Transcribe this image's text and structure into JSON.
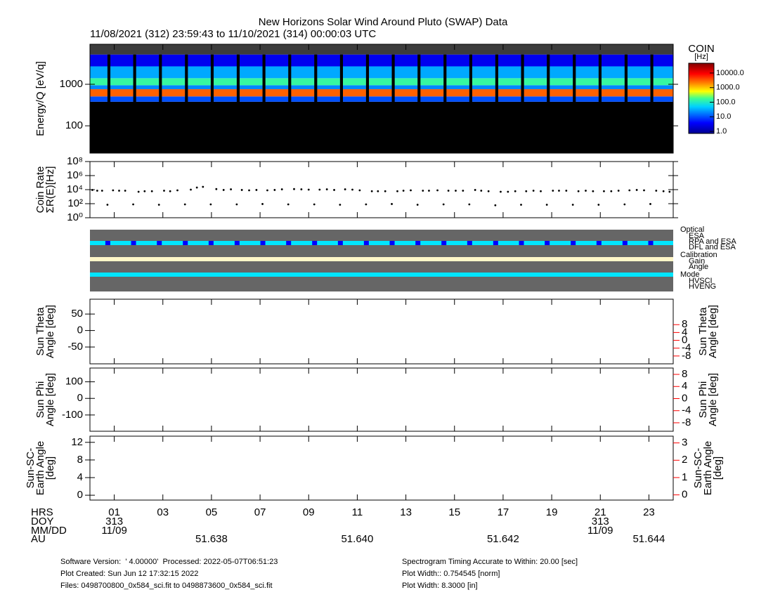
{
  "title": "New Horizons Solar Wind Around Pluto (SWAP) Data",
  "subtitle": "11/08/2021 (312) 23:59:43 to 11/10/2021 (314) 00:00:03 UTC",
  "time_axis": {
    "xlim": [
      0,
      24
    ],
    "xticks": [
      {
        "value": 1,
        "label": "01"
      },
      {
        "value": 3,
        "label": "03"
      },
      {
        "value": 5,
        "label": "05"
      },
      {
        "value": 7,
        "label": "07"
      },
      {
        "value": 9,
        "label": "09"
      },
      {
        "value": 11,
        "label": "11"
      },
      {
        "value": 13,
        "label": "13"
      },
      {
        "value": 15,
        "label": "15"
      },
      {
        "value": 17,
        "label": "17"
      },
      {
        "value": 19,
        "label": "19"
      },
      {
        "value": 21,
        "label": "21"
      },
      {
        "value": 23,
        "label": "23"
      }
    ],
    "rows": [
      "HRS",
      "DOY",
      "MM/DD",
      "AU"
    ],
    "doy": [
      {
        "value": 1,
        "label": "313"
      },
      {
        "value": 21,
        "label": "313"
      }
    ],
    "mmdd": [
      {
        "value": 1,
        "label": "11/09"
      },
      {
        "value": 21,
        "label": "11/09"
      }
    ],
    "au": [
      {
        "value": 5,
        "label": "51.638"
      },
      {
        "value": 11,
        "label": "51.640"
      },
      {
        "value": 17,
        "label": "51.642"
      },
      {
        "value": 23,
        "label": "51.644"
      }
    ]
  },
  "chart_data": [
    {
      "type": "heatmap",
      "ylabel": [
        "Energy/Q [eV/q]"
      ],
      "ylog": true,
      "ylim": [
        22,
        9200
      ],
      "yticks": [
        100,
        1000
      ],
      "energy_edges": [
        22,
        380,
        510,
        760,
        950,
        1400,
        2700,
        5200,
        9200
      ],
      "rates": [
        0.5,
        10,
        3000,
        20,
        150,
        30,
        3,
        null
      ],
      "gaps": [
        0.72,
        1.78,
        2.84,
        3.91,
        4.97,
        6.04,
        7.1,
        8.16,
        9.23,
        10.29,
        11.36,
        12.42,
        13.48,
        14.55,
        15.61,
        16.68,
        17.74,
        18.8,
        19.87,
        20.93,
        22.0,
        23.06
      ],
      "gap_width": 0.12,
      "colorbar_title": [
        "COIN",
        "[Hz]"
      ],
      "zlim": [
        0.72,
        47000
      ],
      "zticks": [
        {
          "value": 10000,
          "label": "10000.0"
        },
        {
          "value": 1000,
          "label": "1000.0"
        },
        {
          "value": 100,
          "label": "100.0"
        },
        {
          "value": 10,
          "label": "10.0"
        },
        {
          "value": 1,
          "label": "1.0"
        }
      ]
    },
    {
      "type": "scatter",
      "ylabel": [
        "Coin Rate",
        "ΣR(E)[Hz]"
      ],
      "ylog": true,
      "ylim": [
        1,
        100000000
      ],
      "yticks": [
        {
          "value": 1,
          "label": "10⁰"
        },
        {
          "value": 100,
          "label": "10²"
        },
        {
          "value": 10000,
          "label": "10⁴"
        },
        {
          "value": 1000000,
          "label": "10⁶"
        },
        {
          "value": 100000000,
          "label": "10⁸"
        }
      ],
      "series": [
        {
          "color": "#000000",
          "x": [
            0.1,
            0.3,
            0.5,
            0.95,
            1.2,
            1.45,
            2.0,
            2.25,
            2.55,
            3.05,
            3.3,
            3.6,
            4.15,
            4.4,
            4.65,
            5.2,
            5.5,
            5.8,
            6.25,
            6.55,
            6.85,
            7.3,
            7.6,
            7.9,
            8.4,
            8.7,
            9.0,
            9.45,
            9.75,
            10.05,
            10.5,
            10.8,
            11.1,
            11.6,
            11.85,
            12.15,
            12.65,
            12.9,
            13.2,
            13.7,
            13.95,
            14.3,
            14.75,
            15.05,
            15.35,
            15.85,
            16.1,
            16.4,
            16.9,
            17.2,
            17.5,
            17.95,
            18.25,
            18.55,
            19.05,
            19.3,
            19.6,
            20.1,
            20.4,
            20.7,
            21.15,
            21.45,
            21.75,
            22.2,
            22.5,
            22.8,
            23.3,
            23.6,
            23.85
          ],
          "values": [
            9000,
            7000,
            7000,
            8000,
            7000,
            7000,
            5000,
            6000,
            6000,
            7000,
            6000,
            8000,
            10000,
            20000,
            25000,
            12000,
            9000,
            11000,
            9000,
            8000,
            9000,
            8000,
            9000,
            11000,
            12000,
            11000,
            10000,
            10000,
            11000,
            9000,
            11000,
            10000,
            8000,
            6000,
            6000,
            6000,
            6000,
            7000,
            8000,
            7000,
            7000,
            8000,
            7000,
            7000,
            7000,
            9000,
            7000,
            6000,
            5000,
            5000,
            6000,
            6000,
            7000,
            6000,
            7000,
            7000,
            7000,
            6000,
            7000,
            6000,
            6000,
            6000,
            7000,
            8000,
            9000,
            8000,
            7000,
            6000,
            5000
          ]
        },
        {
          "color": "#000000",
          "x": [
            0.72,
            1.78,
            2.84,
            3.91,
            4.97,
            6.04,
            7.1,
            8.16,
            9.23,
            10.29,
            11.36,
            12.42,
            13.48,
            14.55,
            15.61,
            16.68,
            17.74,
            18.8,
            19.87,
            20.93,
            22.0,
            23.06
          ],
          "values": [
            70,
            80,
            70,
            80,
            80,
            80,
            90,
            80,
            80,
            70,
            80,
            90,
            70,
            80,
            80,
            60,
            70,
            70,
            70,
            70,
            80,
            90
          ]
        }
      ]
    },
    {
      "type": "status",
      "groups": [
        {
          "name": "Optical",
          "items": [
            {
              "label": "ESA",
              "color": "#00e5ff"
            },
            {
              "label": "RPA and ESA",
              "color": "#ff0000"
            },
            {
              "label": "DFL and ESA",
              "color": "#0000ff"
            }
          ]
        },
        {
          "name": "Calibration",
          "items": [
            {
              "label": "Gain",
              "color": "#ff0000"
            },
            {
              "label": "Angle",
              "color": "#00e5ff"
            }
          ]
        },
        {
          "name": "Mode",
          "items": [
            {
              "label": "HVSCI",
              "color": "#00e5ff"
            },
            {
              "label": "HVENG",
              "color": "#ff0000"
            }
          ]
        }
      ]
    },
    {
      "type": "line",
      "ylabel": [
        "Sun Theta",
        "Angle [deg]"
      ],
      "y2label": [
        "Sun Theta",
        "Angle [deg]"
      ],
      "ylim": [
        -101,
        95
      ],
      "yticks": [
        -50,
        0,
        50
      ],
      "y2lim": [
        -12,
        21
      ],
      "y2ticks": [
        -8,
        -4,
        0,
        4,
        8
      ],
      "y2color": "#ff0000"
    },
    {
      "type": "line",
      "ylabel": [
        "Sun Phi",
        "Angle [deg]"
      ],
      "y2label": [
        "Sun Phi",
        "Angle [deg]"
      ],
      "ylim": [
        -198,
        183
      ],
      "yticks": [
        -100,
        0,
        100
      ],
      "y2lim": [
        -10.8,
        10.1
      ],
      "y2ticks": [
        -8,
        -4,
        0,
        4,
        8
      ],
      "y2color": "#ff0000"
    },
    {
      "type": "line",
      "ylabel": [
        "Sun-SC-",
        "Earth Angle",
        "[deg]"
      ],
      "y2label": [
        "Sun-SC-",
        "Earth Angle",
        "[deg]"
      ],
      "ylim": [
        -1.1,
        13.4
      ],
      "yticks": [
        0,
        4,
        8,
        12
      ],
      "y2lim": [
        -0.3,
        3.39
      ],
      "y2ticks": [
        0,
        1,
        2,
        3
      ],
      "y2color": "#ff0000"
    }
  ],
  "footer": {
    "left": [
      "Software Version:  ' 4.00000'  Processed: 2022-05-07T06:51:23",
      "Plot Created: Sun Jun 12 17:32:15 2022",
      "Files: 0498700800_0x584_sci.fit to 0498873600_0x584_sci.fit"
    ],
    "right": [
      "Spectrogram Timing Accurate to Within: 20.00 [sec]",
      "Plot Width:: 0.754545 [norm]",
      "Plot Width: 8.3000 [in]"
    ]
  }
}
